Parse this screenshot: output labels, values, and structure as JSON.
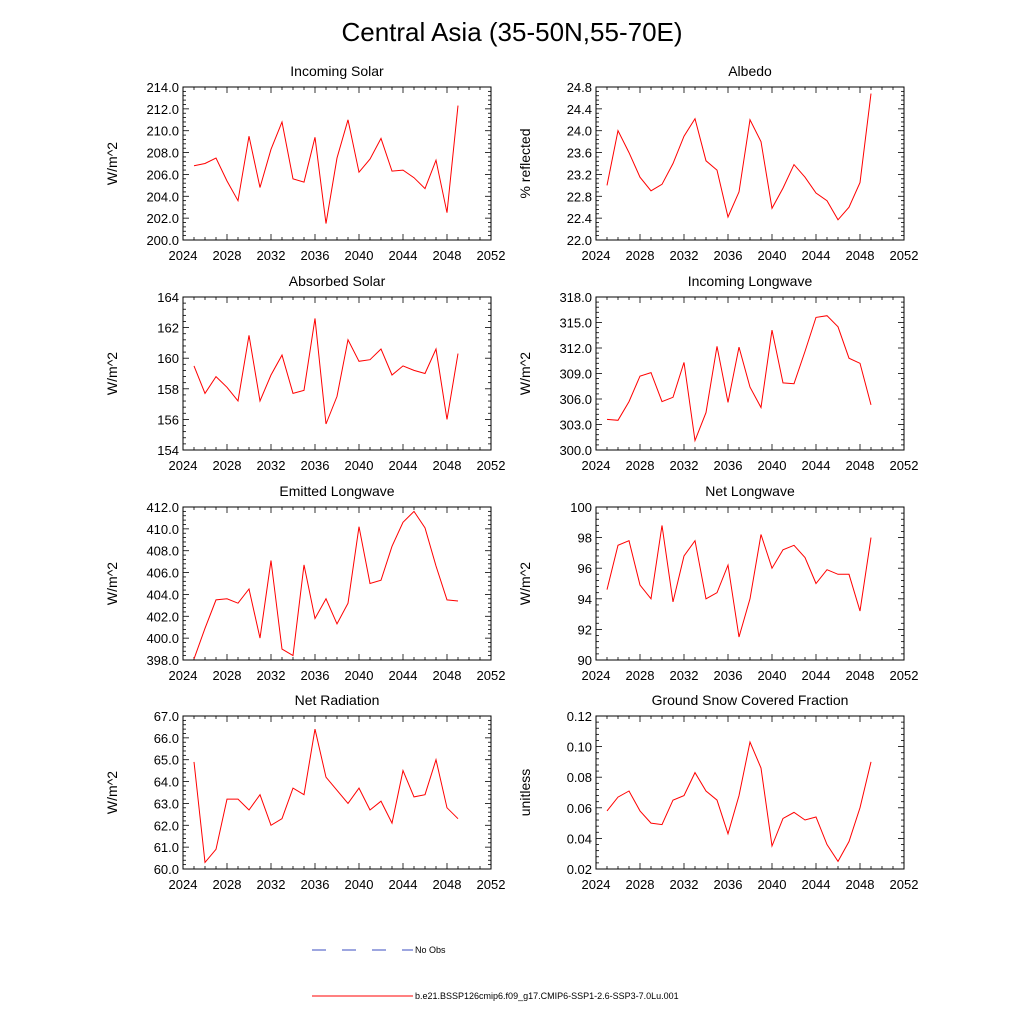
{
  "figure": {
    "title": "Central Asia (35-50N,55-70E)",
    "legend": [
      {
        "label": "No Obs",
        "color": "#3b4cc0",
        "dash": true
      },
      {
        "label": "b.e21.BSSP126cmip6.f09_g17.CMIP6-SSP1-2.6-SSP3-7.0Lu.001",
        "color": "#ff0000",
        "dash": false
      }
    ]
  },
  "chart_data": [
    {
      "type": "line",
      "title": "Incoming Solar",
      "ylabel": "W/m^2",
      "xlim": [
        2024,
        2052
      ],
      "ylim": [
        200,
        214
      ],
      "xticks": [
        2024,
        2028,
        2032,
        2036,
        2040,
        2044,
        2048,
        2052
      ],
      "yticks": [
        200.0,
        202.0,
        204.0,
        206.0,
        208.0,
        210.0,
        212.0,
        214.0
      ],
      "ytick_labels": [
        "200.0",
        "202.0",
        "204.0",
        "206.0",
        "208.0",
        "210.0",
        "212.0",
        "214.0"
      ],
      "x": [
        2025,
        2026,
        2027,
        2028,
        2029,
        2030,
        2031,
        2032,
        2033,
        2034,
        2035,
        2036,
        2037,
        2038,
        2039,
        2040,
        2041,
        2042,
        2043,
        2044,
        2045,
        2046,
        2047,
        2048,
        2049
      ],
      "series": [
        {
          "color": "#ff0000",
          "values": [
            206.8,
            207.0,
            207.5,
            205.4,
            203.6,
            209.5,
            204.8,
            208.3,
            210.8,
            205.6,
            205.3,
            209.4,
            201.5,
            207.5,
            211.0,
            206.2,
            207.4,
            209.3,
            206.3,
            206.4,
            205.7,
            204.7,
            207.3,
            202.5,
            212.3
          ]
        }
      ]
    },
    {
      "type": "line",
      "title": "Albedo",
      "ylabel": "% reflected",
      "xlim": [
        2024,
        2052
      ],
      "ylim": [
        22.0,
        24.8
      ],
      "xticks": [
        2024,
        2028,
        2032,
        2036,
        2040,
        2044,
        2048,
        2052
      ],
      "yticks": [
        22.0,
        22.4,
        22.8,
        23.2,
        23.6,
        24.0,
        24.4,
        24.8
      ],
      "ytick_labels": [
        "22.0",
        "22.4",
        "22.8",
        "23.2",
        "23.6",
        "24.0",
        "24.4",
        "24.8"
      ],
      "x": [
        2025,
        2026,
        2027,
        2028,
        2029,
        2030,
        2031,
        2032,
        2033,
        2034,
        2035,
        2036,
        2037,
        2038,
        2039,
        2040,
        2041,
        2042,
        2043,
        2044,
        2045,
        2046,
        2047,
        2048,
        2049
      ],
      "series": [
        {
          "color": "#ff0000",
          "values": [
            23.0,
            24.0,
            23.6,
            23.15,
            22.9,
            23.02,
            23.4,
            23.9,
            24.22,
            23.45,
            23.28,
            22.42,
            22.88,
            24.2,
            23.8,
            22.58,
            22.95,
            23.38,
            23.15,
            22.86,
            22.72,
            22.37,
            22.6,
            23.05,
            24.68
          ]
        }
      ]
    },
    {
      "type": "line",
      "title": "Absorbed Solar",
      "ylabel": "W/m^2",
      "xlim": [
        2024,
        2052
      ],
      "ylim": [
        154,
        164
      ],
      "xticks": [
        2024,
        2028,
        2032,
        2036,
        2040,
        2044,
        2048,
        2052
      ],
      "yticks": [
        154,
        156,
        158,
        160,
        162,
        164
      ],
      "ytick_labels": [
        "154",
        "156",
        "158",
        "160",
        "162",
        "164"
      ],
      "x": [
        2025,
        2026,
        2027,
        2028,
        2029,
        2030,
        2031,
        2032,
        2033,
        2034,
        2035,
        2036,
        2037,
        2038,
        2039,
        2040,
        2041,
        2042,
        2043,
        2044,
        2045,
        2046,
        2047,
        2048,
        2049
      ],
      "series": [
        {
          "color": "#ff0000",
          "values": [
            159.5,
            157.7,
            158.8,
            158.1,
            157.2,
            161.5,
            157.2,
            158.9,
            160.2,
            157.7,
            157.9,
            162.6,
            155.7,
            157.5,
            161.2,
            159.8,
            159.9,
            160.6,
            158.9,
            159.5,
            159.2,
            159.0,
            160.6,
            156.0,
            160.3
          ]
        }
      ]
    },
    {
      "type": "line",
      "title": "Incoming Longwave",
      "ylabel": "W/m^2",
      "xlim": [
        2024,
        2052
      ],
      "ylim": [
        300,
        318
      ],
      "xticks": [
        2024,
        2028,
        2032,
        2036,
        2040,
        2044,
        2048,
        2052
      ],
      "yticks": [
        300,
        303,
        306,
        309,
        312,
        315,
        318
      ],
      "ytick_labels": [
        "300.0",
        "303.0",
        "306.0",
        "309.0",
        "312.0",
        "315.0",
        "318.0"
      ],
      "x": [
        2025,
        2026,
        2027,
        2028,
        2029,
        2030,
        2031,
        2032,
        2033,
        2034,
        2035,
        2036,
        2037,
        2038,
        2039,
        2040,
        2041,
        2042,
        2043,
        2044,
        2045,
        2046,
        2047,
        2048,
        2049
      ],
      "series": [
        {
          "color": "#ff0000",
          "values": [
            303.6,
            303.5,
            305.7,
            308.7,
            309.1,
            305.7,
            306.2,
            310.3,
            301.1,
            304.4,
            312.2,
            305.6,
            312.1,
            307.4,
            305.0,
            314.1,
            307.9,
            307.8,
            311.6,
            315.6,
            315.8,
            314.5,
            310.8,
            310.2,
            305.3
          ]
        }
      ]
    },
    {
      "type": "line",
      "title": "Emitted Longwave",
      "ylabel": "W/m^2",
      "xlim": [
        2024,
        2052
      ],
      "ylim": [
        398,
        412
      ],
      "xticks": [
        2024,
        2028,
        2032,
        2036,
        2040,
        2044,
        2048,
        2052
      ],
      "yticks": [
        398,
        400,
        402,
        404,
        406,
        408,
        410,
        412
      ],
      "ytick_labels": [
        "398.0",
        "400.0",
        "402.0",
        "404.0",
        "406.0",
        "408.0",
        "410.0",
        "412.0"
      ],
      "x": [
        2025,
        2026,
        2027,
        2028,
        2029,
        2030,
        2031,
        2032,
        2033,
        2034,
        2035,
        2036,
        2037,
        2038,
        2039,
        2040,
        2041,
        2042,
        2043,
        2044,
        2045,
        2046,
        2047,
        2048,
        2049
      ],
      "series": [
        {
          "color": "#ff0000",
          "values": [
            398.1,
            400.9,
            403.5,
            403.6,
            403.2,
            404.5,
            400.0,
            407.1,
            399.0,
            398.4,
            406.7,
            401.8,
            403.6,
            401.3,
            403.2,
            410.2,
            405.0,
            405.3,
            408.4,
            410.6,
            411.6,
            410.1,
            406.6,
            403.5,
            403.4
          ]
        }
      ]
    },
    {
      "type": "line",
      "title": "Net Longwave",
      "ylabel": "W/m^2",
      "xlim": [
        2024,
        2052
      ],
      "ylim": [
        90,
        100
      ],
      "xticks": [
        2024,
        2028,
        2032,
        2036,
        2040,
        2044,
        2048,
        2052
      ],
      "yticks": [
        90,
        92,
        94,
        96,
        98,
        100
      ],
      "ytick_labels": [
        "90",
        "92",
        "94",
        "96",
        "98",
        "100"
      ],
      "x": [
        2025,
        2026,
        2027,
        2028,
        2029,
        2030,
        2031,
        2032,
        2033,
        2034,
        2035,
        2036,
        2037,
        2038,
        2039,
        2040,
        2041,
        2042,
        2043,
        2044,
        2045,
        2046,
        2047,
        2048,
        2049
      ],
      "series": [
        {
          "color": "#ff0000",
          "values": [
            94.6,
            97.5,
            97.8,
            94.9,
            94.0,
            98.8,
            93.8,
            96.8,
            97.8,
            94.0,
            94.4,
            96.2,
            91.5,
            94.0,
            98.2,
            96.0,
            97.2,
            97.5,
            96.7,
            95.0,
            95.9,
            95.6,
            95.6,
            93.2,
            98.0
          ]
        }
      ]
    },
    {
      "type": "line",
      "title": "Net Radiation",
      "ylabel": "W/m^2",
      "xlim": [
        2024,
        2052
      ],
      "ylim": [
        60,
        67
      ],
      "xticks": [
        2024,
        2028,
        2032,
        2036,
        2040,
        2044,
        2048,
        2052
      ],
      "yticks": [
        60,
        61,
        62,
        63,
        64,
        65,
        66,
        67
      ],
      "ytick_labels": [
        "60.0",
        "61.0",
        "62.0",
        "63.0",
        "64.0",
        "65.0",
        "66.0",
        "67.0"
      ],
      "x": [
        2025,
        2026,
        2027,
        2028,
        2029,
        2030,
        2031,
        2032,
        2033,
        2034,
        2035,
        2036,
        2037,
        2038,
        2039,
        2040,
        2041,
        2042,
        2043,
        2044,
        2045,
        2046,
        2047,
        2048,
        2049
      ],
      "series": [
        {
          "color": "#ff0000",
          "values": [
            64.9,
            60.3,
            60.9,
            63.2,
            63.2,
            62.7,
            63.4,
            62.0,
            62.3,
            63.7,
            63.4,
            66.4,
            64.2,
            63.6,
            63.0,
            63.7,
            62.7,
            63.1,
            62.1,
            64.5,
            63.3,
            63.4,
            65.0,
            62.8,
            62.3
          ]
        }
      ]
    },
    {
      "type": "line",
      "title": "Ground Snow Covered Fraction",
      "ylabel": "unitless",
      "xlim": [
        2024,
        2052
      ],
      "ylim": [
        0.02,
        0.12
      ],
      "xticks": [
        2024,
        2028,
        2032,
        2036,
        2040,
        2044,
        2048,
        2052
      ],
      "yticks": [
        0.02,
        0.04,
        0.06,
        0.08,
        0.1,
        0.12
      ],
      "ytick_labels": [
        "0.02",
        "0.04",
        "0.06",
        "0.08",
        "0.10",
        "0.12"
      ],
      "x": [
        2025,
        2026,
        2027,
        2028,
        2029,
        2030,
        2031,
        2032,
        2033,
        2034,
        2035,
        2036,
        2037,
        2038,
        2039,
        2040,
        2041,
        2042,
        2043,
        2044,
        2045,
        2046,
        2047,
        2048,
        2049
      ],
      "series": [
        {
          "color": "#ff0000",
          "values": [
            0.058,
            0.067,
            0.071,
            0.058,
            0.05,
            0.049,
            0.065,
            0.068,
            0.083,
            0.071,
            0.065,
            0.043,
            0.068,
            0.103,
            0.086,
            0.035,
            0.053,
            0.057,
            0.052,
            0.054,
            0.036,
            0.025,
            0.038,
            0.06,
            0.09
          ]
        }
      ]
    }
  ]
}
